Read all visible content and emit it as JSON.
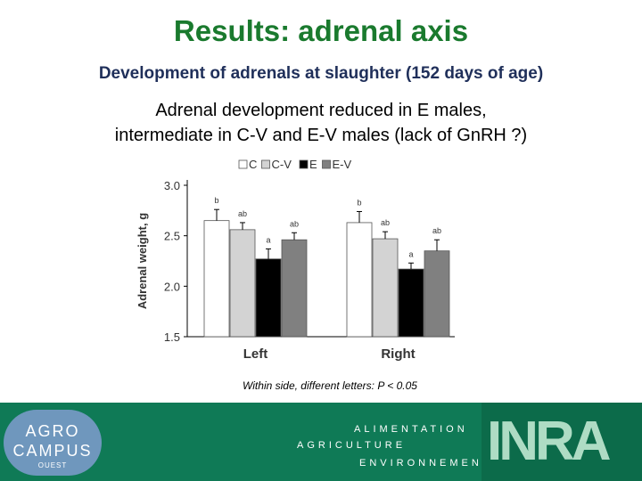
{
  "slide": {
    "title": "Results: adrenal axis",
    "subtitle": "Development of adrenals at slaughter (152 days of age)",
    "description_lines": [
      "Adrenal development reduced in E males,",
      "intermediate in C-V and E-V males (lack of GnRH ?)"
    ],
    "note": "Within side, different letters: P < 0.05"
  },
  "footer": {
    "agro_logo": {
      "line1": "AGRO",
      "line2": "CAMPUS",
      "line3": "OUEST"
    },
    "mission_lines": [
      "ALIMENTATION",
      "AGRICULTURE",
      "ENVIRONNEMENT"
    ],
    "inra_logo": "INRA"
  },
  "colors": {
    "title": "#1a7a2e",
    "subtitle": "#1f2f5a",
    "footer_bg": "#0f7a56",
    "series": [
      "#ffffff",
      "#d3d3d3",
      "#000000",
      "#808080"
    ]
  },
  "chart_data": {
    "type": "bar",
    "title": "",
    "xlabel": "",
    "ylabel": "Adrenal weight, g",
    "categories": [
      "Left",
      "Right"
    ],
    "ylim": [
      1.5,
      3.0
    ],
    "yticks": [
      "1.5",
      "2.0",
      "2.5",
      "3.0"
    ],
    "grid": false,
    "legend_position": "top",
    "series": [
      {
        "name": "C",
        "values": [
          2.65,
          2.63
        ],
        "errors": [
          0.11,
          0.11
        ],
        "letters": [
          "b",
          "b"
        ]
      },
      {
        "name": "C-V",
        "values": [
          2.56,
          2.47
        ],
        "errors": [
          0.07,
          0.07
        ],
        "letters": [
          "ab",
          "ab"
        ]
      },
      {
        "name": "E",
        "values": [
          2.27,
          2.17
        ],
        "errors": [
          0.1,
          0.06
        ],
        "letters": [
          "a",
          "a"
        ]
      },
      {
        "name": "E-V",
        "values": [
          2.46,
          2.35
        ],
        "errors": [
          0.07,
          0.11
        ],
        "letters": [
          "ab",
          "ab"
        ]
      }
    ]
  }
}
